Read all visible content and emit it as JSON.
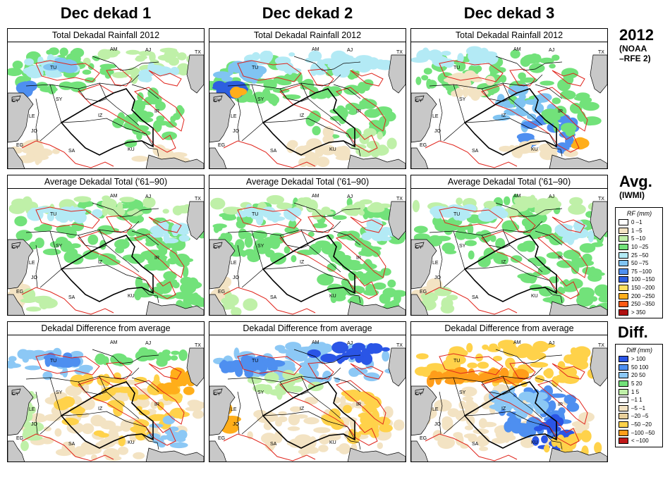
{
  "columns": [
    "Dec dekad 1",
    "Dec dekad 2",
    "Dec dekad 3"
  ],
  "rows": [
    {
      "panel_title": "Total Dekadal Rainfall 2012",
      "kind": "total"
    },
    {
      "panel_title": "Average Dekadal Total ('61–90)",
      "kind": "avg"
    },
    {
      "panel_title": "Dekadal Difference from average",
      "kind": "diff"
    }
  ],
  "side": {
    "row1_title": "2012",
    "row1_sub1": "(NOAA",
    "row1_sub2": "–RFE 2)",
    "row2_title": "Avg.",
    "row2_sub": "(IWMI)",
    "row3_title": "Diff."
  },
  "country_labels": [
    "AM",
    "AJ",
    "TX",
    "TU",
    "SY",
    "CY",
    "LE",
    "IZ",
    "IR",
    "JO",
    "EG",
    "SA",
    "KU"
  ],
  "legend_rf": {
    "title": "RF (mm)",
    "items": [
      {
        "label": "0 –1",
        "color": "#ffffff"
      },
      {
        "label": "1 –5",
        "color": "#f3e3c3"
      },
      {
        "label": "5 –10",
        "color": "#bff0a8"
      },
      {
        "label": "10 –25",
        "color": "#72e27a"
      },
      {
        "label": "25 –50",
        "color": "#b3eaf5"
      },
      {
        "label": "50 –75",
        "color": "#80c4f2"
      },
      {
        "label": "75 –100",
        "color": "#4e8ff0"
      },
      {
        "label": "100 –150",
        "color": "#2d5fe0"
      },
      {
        "label": "150 –200",
        "color": "#ffe060"
      },
      {
        "label": "200 –250",
        "color": "#ffae1a"
      },
      {
        "label": "250 –350",
        "color": "#ff5a14"
      },
      {
        "label": "> 350",
        "color": "#b01010"
      }
    ]
  },
  "legend_diff": {
    "title": "Diff (mm)",
    "items": [
      {
        "label": "> 100",
        "color": "#2a55e6"
      },
      {
        "label": "50  100",
        "color": "#4e8ff0"
      },
      {
        "label": "20  50",
        "color": "#8cc8f5"
      },
      {
        "label": "5  20",
        "color": "#72e27a"
      },
      {
        "label": "1  5",
        "color": "#bff0a8"
      },
      {
        "label": "–1  1",
        "color": "#ffffff"
      },
      {
        "label": "–5  –1",
        "color": "#f3e3c3"
      },
      {
        "label": "–20  –5",
        "color": "#e8cf9a"
      },
      {
        "label": "–50  –20",
        "color": "#ffd24a"
      },
      {
        "label": "–100  –50",
        "color": "#ff9d1a"
      },
      {
        "label": "< –100",
        "color": "#c01818"
      }
    ]
  },
  "colors": {
    "sea": "#c8c8c8",
    "border_red": "#e0241c",
    "border_black": "#000000"
  }
}
